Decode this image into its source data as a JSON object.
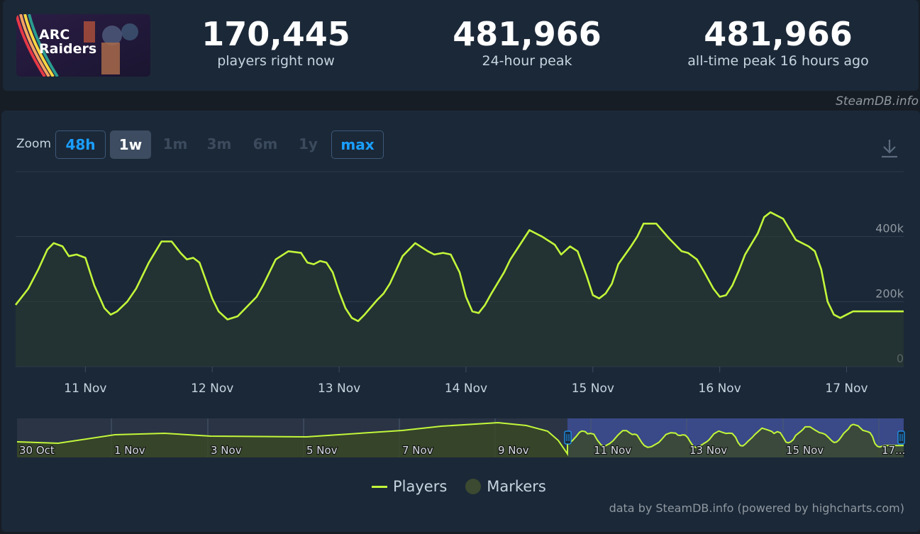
{
  "game": {
    "logo_text_line1": "ARC",
    "logo_text_line2": "Raiders"
  },
  "stats": [
    {
      "value": "170,445",
      "label": "players right now"
    },
    {
      "value": "481,966",
      "label": "24-hour peak"
    },
    {
      "value": "481,966",
      "label": "all-time peak 16 hours ago"
    }
  ],
  "credit_top": "SteamDB.info",
  "zoom": {
    "label": "Zoom",
    "buttons": [
      {
        "label": "48h",
        "state": "outlined"
      },
      {
        "label": "1w",
        "state": "active"
      },
      {
        "label": "1m",
        "state": "disabled"
      },
      {
        "label": "3m",
        "state": "disabled"
      },
      {
        "label": "6m",
        "state": "disabled"
      },
      {
        "label": "1y",
        "state": "disabled"
      },
      {
        "label": "max",
        "state": "outlined"
      }
    ]
  },
  "legend": {
    "players": "Players",
    "markers": "Markers"
  },
  "credit_bottom": "data by SteamDB.info (powered by highcharts.com)",
  "colors": {
    "accent": "#c2f73a",
    "link": "#1a9fff",
    "background": "#1b2838",
    "navigator_selection": "#3c4b8f"
  },
  "chart_data": {
    "type": "line",
    "series": [
      {
        "name": "Players",
        "x": [
          10.45,
          10.55,
          10.63,
          10.7,
          10.75,
          10.82,
          10.87,
          10.93,
          11.0,
          11.07,
          11.15,
          11.2,
          11.25,
          11.33,
          11.4,
          11.5,
          11.6,
          11.68,
          11.75,
          11.8,
          11.85,
          11.9,
          11.95,
          12.0,
          12.05,
          12.12,
          12.2,
          12.3,
          12.35,
          12.4,
          12.5,
          12.6,
          12.7,
          12.75,
          12.8,
          12.85,
          12.9,
          12.95,
          13.0,
          13.05,
          13.1,
          13.15,
          13.2,
          13.3,
          13.35,
          13.4,
          13.5,
          13.6,
          13.7,
          13.75,
          13.82,
          13.88,
          13.95,
          14.0,
          14.05,
          14.1,
          14.15,
          14.2,
          14.3,
          14.35,
          14.4,
          14.5,
          14.6,
          14.7,
          14.75,
          14.82,
          14.88,
          14.95,
          15.0,
          15.05,
          15.1,
          15.15,
          15.2,
          15.3,
          15.35,
          15.4,
          15.5,
          15.6,
          15.7,
          15.75,
          15.82,
          15.88,
          15.95,
          16.0,
          16.05,
          16.1,
          16.15,
          16.2,
          16.3,
          16.35,
          16.4,
          16.5,
          16.6,
          16.7,
          16.75,
          16.8,
          16.85,
          16.9,
          16.95,
          17.0,
          17.05,
          17.1,
          17.15,
          17.2,
          17.25,
          17.3,
          17.35,
          17.4,
          17.45
        ],
        "y": [
          190000,
          240000,
          300000,
          360000,
          380000,
          370000,
          340000,
          345000,
          335000,
          250000,
          180000,
          160000,
          170000,
          200000,
          240000,
          320000,
          385000,
          385000,
          350000,
          330000,
          335000,
          320000,
          265000,
          210000,
          170000,
          145000,
          155000,
          195000,
          215000,
          250000,
          330000,
          355000,
          350000,
          320000,
          315000,
          325000,
          320000,
          290000,
          230000,
          180000,
          150000,
          140000,
          160000,
          205000,
          225000,
          255000,
          340000,
          380000,
          355000,
          345000,
          350000,
          345000,
          290000,
          215000,
          170000,
          165000,
          190000,
          225000,
          290000,
          330000,
          360000,
          420000,
          400000,
          375000,
          345000,
          370000,
          355000,
          280000,
          220000,
          210000,
          225000,
          255000,
          315000,
          370000,
          400000,
          440000,
          440000,
          395000,
          355000,
          350000,
          330000,
          290000,
          240000,
          215000,
          220000,
          250000,
          295000,
          345000,
          410000,
          460000,
          475000,
          455000,
          390000,
          370000,
          355000,
          300000,
          200000,
          160000,
          150000,
          160000,
          170000,
          170000,
          170000,
          170000,
          170000,
          170000,
          170000,
          170000,
          170000
        ]
      }
    ],
    "xticks": [
      "11 Nov",
      "12 Nov",
      "13 Nov",
      "14 Nov",
      "15 Nov",
      "16 Nov",
      "17 Nov"
    ],
    "yticks": [
      "0",
      "200k",
      "400k"
    ],
    "ylim": [
      0,
      600000
    ],
    "grid": true,
    "legend_position": "bottom-center",
    "navigator": {
      "labels": [
        "30 Oct",
        "1 Nov",
        "3 Nov",
        "5 Nov",
        "7 Nov",
        "9 Nov",
        "11 Nov",
        "13 Nov",
        "15 Nov",
        "17..."
      ]
    }
  }
}
